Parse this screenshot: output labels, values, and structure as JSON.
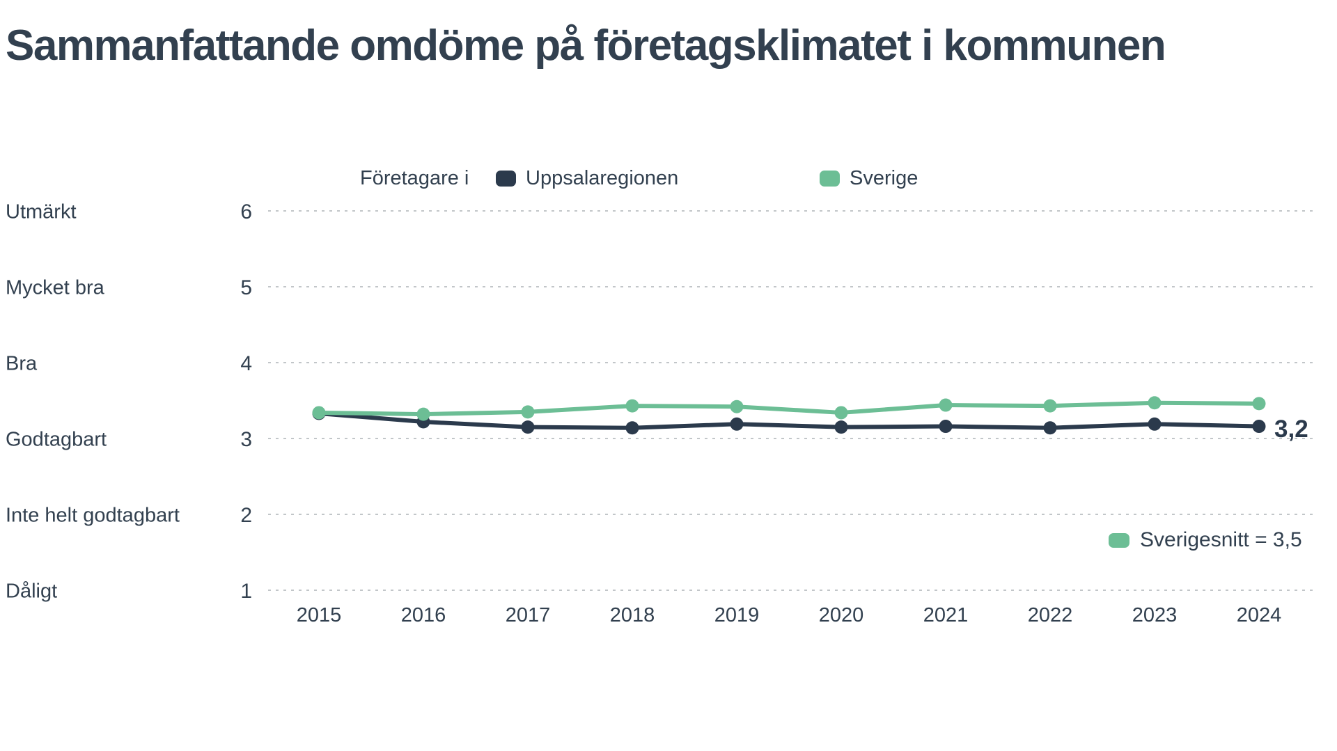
{
  "title": "Sammanfattande omdöme på företagsklimatet i kommunen",
  "legend": {
    "prefix": "Företagare i",
    "items": [
      {
        "label": "Uppsalaregionen",
        "color": "#2b3a4c"
      },
      {
        "label": "Sverige",
        "color": "#6cbe95"
      }
    ]
  },
  "y_axis": {
    "rows": [
      {
        "label": "Utmärkt",
        "value": "6"
      },
      {
        "label": "Mycket bra",
        "value": "5"
      },
      {
        "label": "Bra",
        "value": "4"
      },
      {
        "label": "Godtagbart",
        "value": "3"
      },
      {
        "label": "Inte helt godtagbart",
        "value": "2"
      },
      {
        "label": "Dåligt",
        "value": "1"
      }
    ]
  },
  "annotations": {
    "end_value_label": "3,2",
    "sweden_avg": {
      "label": "Sverigesnitt = 3,5",
      "color": "#6cbe95"
    }
  },
  "chart_data": {
    "type": "line",
    "title": "Sammanfattande omdöme på företagsklimatet i kommunen",
    "categories": [
      "2015",
      "2016",
      "2017",
      "2018",
      "2019",
      "2020",
      "2021",
      "2022",
      "2023",
      "2024"
    ],
    "series": [
      {
        "name": "Uppsalaregionen",
        "color": "#2b3a4c",
        "values": [
          3.33,
          3.22,
          3.15,
          3.14,
          3.19,
          3.15,
          3.16,
          3.14,
          3.19,
          3.16
        ],
        "end_label": "3,2"
      },
      {
        "name": "Sverige",
        "color": "#6cbe95",
        "values": [
          3.34,
          3.32,
          3.35,
          3.43,
          3.42,
          3.34,
          3.44,
          3.43,
          3.47,
          3.46
        ],
        "note": "Sverigesnitt = 3,5"
      }
    ],
    "ylim": [
      1,
      6
    ],
    "yticks": [
      1,
      2,
      3,
      4,
      5,
      6
    ],
    "ytick_labels": [
      "Dåligt",
      "Inte helt godtagbart",
      "Godtagbart",
      "Bra",
      "Mycket bra",
      "Utmärkt"
    ],
    "grid": "horizontal-dashed",
    "grid_color": "#c2c6c9",
    "legend_position": "top-center"
  }
}
